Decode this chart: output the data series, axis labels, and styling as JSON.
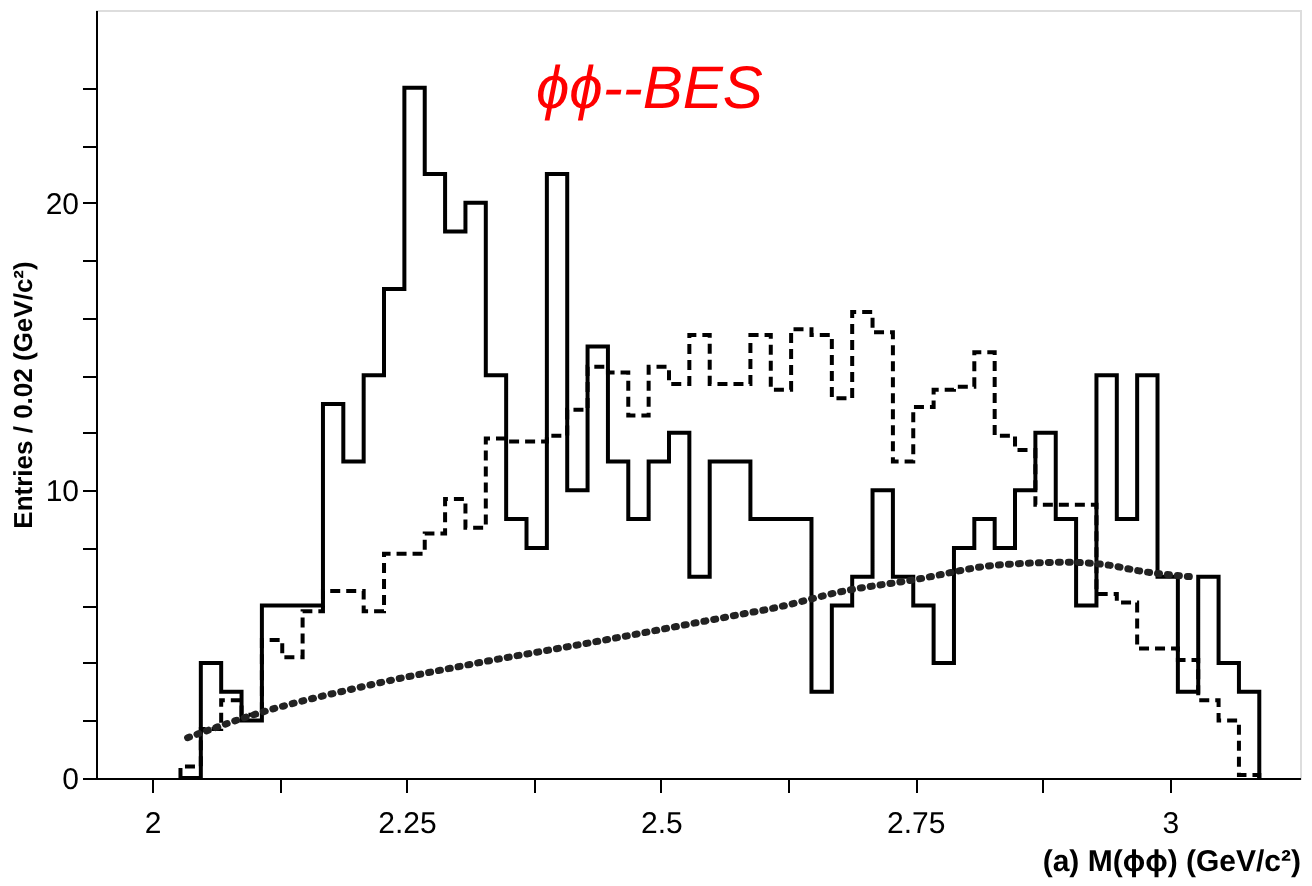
{
  "chart_data": {
    "type": "histogram",
    "xlabel": "(a) M(ϕϕ) (GeV/c²)",
    "ylabel": "Entries / 0.02 (GeV/c²)",
    "annotations": [
      "ϕϕ--BES"
    ],
    "xlim": [
      1.945,
      3.128
    ],
    "ylim": [
      0,
      26.7
    ],
    "xticks": [
      2,
      {
        "value": 2.125,
        "label": null
      },
      2.25,
      {
        "value": 2.375,
        "label": null
      },
      2.5,
      {
        "value": 2.625,
        "label": null
      },
      2.75,
      {
        "value": 2.875,
        "label": null
      },
      3
    ],
    "yticks": [
      0,
      {
        "value": 2,
        "label": null
      },
      {
        "value": 4,
        "label": null
      },
      {
        "value": 6,
        "label": null
      },
      {
        "value": 8,
        "label": null
      },
      10,
      {
        "value": 12,
        "label": null
      },
      {
        "value": 14,
        "label": null
      },
      {
        "value": 16,
        "label": null
      },
      {
        "value": 18,
        "label": null
      },
      20,
      {
        "value": 22,
        "label": null
      },
      {
        "value": 24,
        "label": null
      }
    ],
    "grid": false,
    "legend": false,
    "bins": [
      2.028,
      2.048,
      2.068,
      2.088,
      2.108,
      2.128,
      2.148,
      2.168,
      2.188,
      2.208,
      2.228,
      2.248,
      2.268,
      2.288,
      2.308,
      2.328,
      2.348,
      2.368,
      2.388,
      2.408,
      2.428,
      2.448,
      2.468,
      2.488,
      2.508,
      2.528,
      2.548,
      2.568,
      2.588,
      2.608,
      2.628,
      2.648,
      2.668,
      2.688,
      2.708,
      2.728,
      2.748,
      2.768,
      2.788,
      2.808,
      2.828,
      2.848,
      2.868,
      2.888,
      2.908,
      2.928,
      2.948,
      2.968,
      2.988,
      3.008,
      3.028,
      3.048,
      3.068,
      3.088
    ],
    "series": [
      {
        "color": "#000000",
        "line_style": "solid",
        "values": [
          0,
          4,
          3,
          2,
          6,
          6,
          6,
          13,
          11,
          14,
          17,
          24,
          21,
          19,
          20,
          14,
          9,
          8,
          21,
          10,
          15,
          11,
          9,
          11,
          12,
          7,
          11,
          11,
          9,
          9,
          9,
          3,
          6,
          7,
          10,
          7,
          6,
          4,
          8,
          9,
          8,
          10,
          12,
          9,
          6,
          14,
          9,
          14,
          7,
          3,
          7,
          4,
          3
        ]
      },
      {
        "color": "#000000",
        "line_style": "dashed",
        "values": [
          0.4,
          1.7,
          2.7,
          2.2,
          4.8,
          4.2,
          5.8,
          6.5,
          6.5,
          5.8,
          7.8,
          7.8,
          8.5,
          9.7,
          8.7,
          11.8,
          11.7,
          11.7,
          11.9,
          12.8,
          14.3,
          14.1,
          12.6,
          14.3,
          13.7,
          15.4,
          13.7,
          13.7,
          15.4,
          13.5,
          15.6,
          15.4,
          13.2,
          16.2,
          15.5,
          11.0,
          12.9,
          13.5,
          13.6,
          14.8,
          11.9,
          11.4,
          9.5,
          9.5,
          9.5,
          6.4,
          6.1,
          4.5,
          4.5,
          4.1,
          2.7,
          2.0,
          0.1
        ]
      },
      {
        "type": "line",
        "color": "#222222",
        "line_style": "dotted",
        "x": [
          2.035,
          2.1,
          2.21,
          2.32,
          2.43,
          2.58,
          2.61,
          2.68,
          2.75,
          2.83,
          2.9,
          2.94,
          2.97,
          3.02
        ],
        "values": [
          1.4,
          2.2,
          3.2,
          4.0,
          4.7,
          5.7,
          5.9,
          6.5,
          6.9,
          7.4,
          7.5,
          7.4,
          7.2,
          7.0
        ]
      }
    ]
  }
}
